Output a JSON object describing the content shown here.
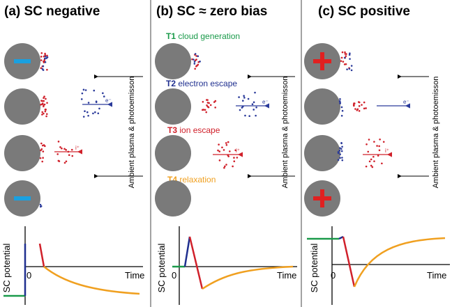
{
  "panels": [
    {
      "title": "(a) SC negative",
      "side_label": "Ambient plasma & photoemisson",
      "y_axis_label": "SC potential",
      "x_axis_label": "Time",
      "origin_label": "0"
    },
    {
      "title": "(b) SC ≈ zero bias",
      "side_label": "Ambient plasma & photoemisson",
      "y_axis_label": "SC potential",
      "x_axis_label": "Time",
      "origin_label": "0"
    },
    {
      "title": "(c) SC positive",
      "side_label": "Ambient plasma & photoemisson",
      "y_axis_label": "SC potential",
      "x_axis_label": "Time",
      "origin_label": "0"
    }
  ],
  "stages": [
    {
      "id": "T1",
      "label": "cloud generation"
    },
    {
      "id": "T2",
      "label": "electron escape"
    },
    {
      "id": "T3",
      "label": "ion escape"
    },
    {
      "id": "T4",
      "label": "relaxation"
    }
  ],
  "particle_labels": {
    "electron": "e⁻",
    "ion": "i⁺"
  }
}
